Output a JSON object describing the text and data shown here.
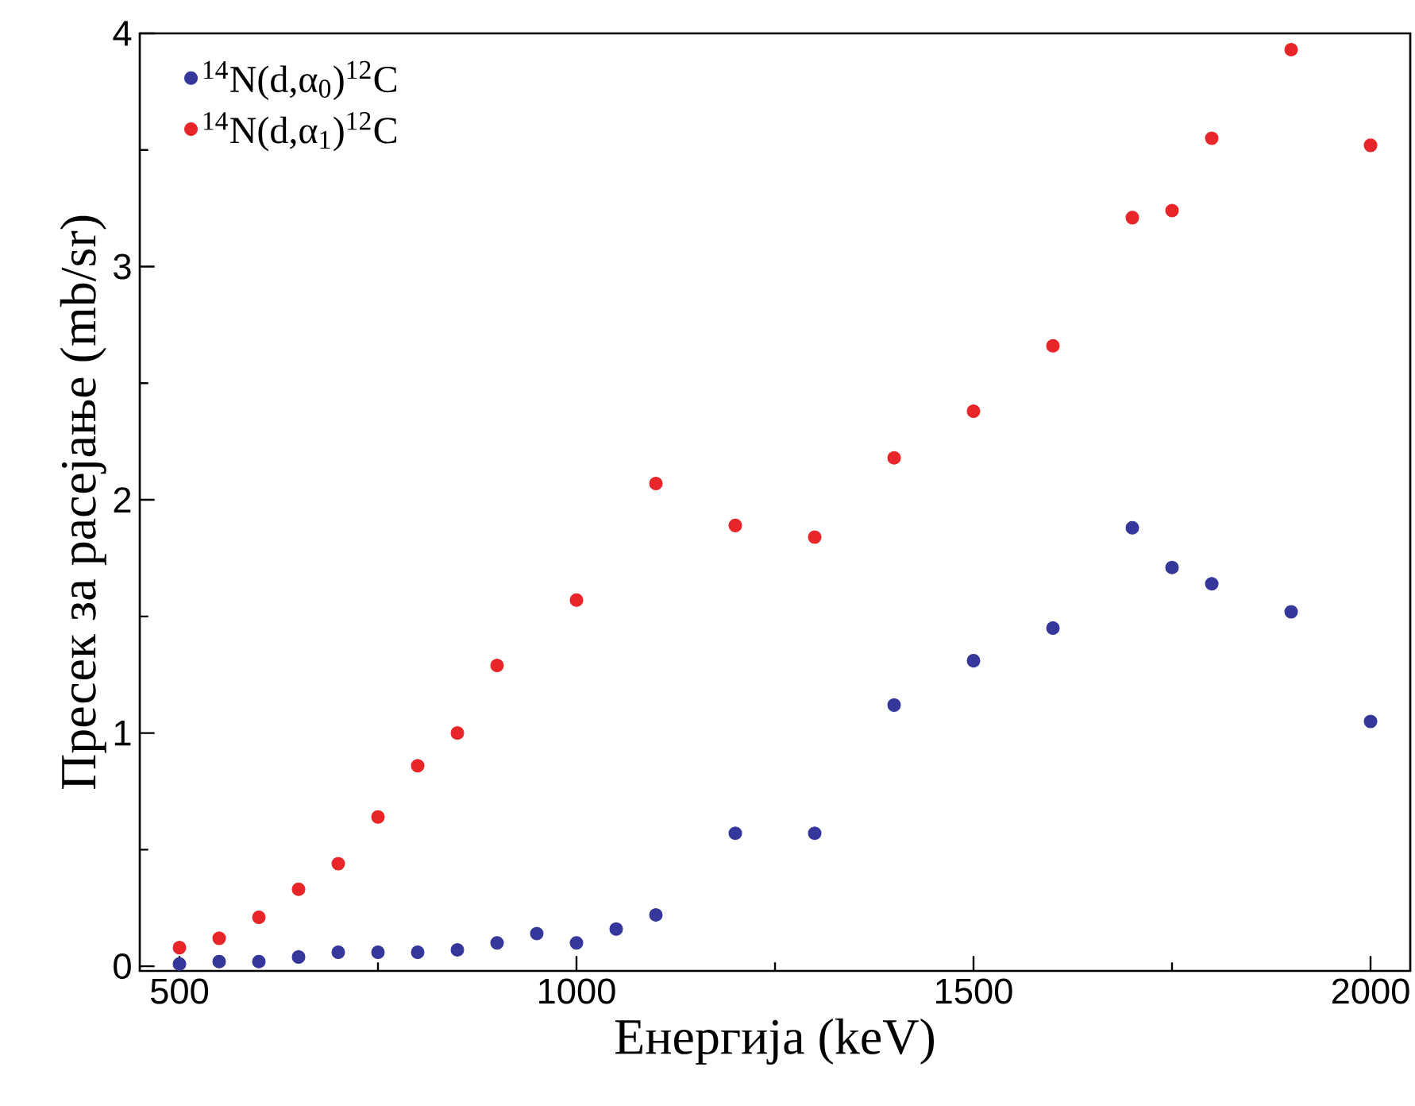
{
  "chart_data": {
    "type": "scatter",
    "xlabel": "Енергија (keV)",
    "ylabel": "Пресек за расејање (mb/sr)",
    "x": [
      500,
      550,
      600,
      650,
      700,
      750,
      800,
      850,
      900,
      950,
      1000,
      1050,
      1100,
      1200,
      1300,
      1400,
      1500,
      1600,
      1700,
      1750,
      1800,
      1900,
      2000
    ],
    "series": [
      {
        "name": "$^{14}$N(d,α$_{0}$)$^{12}$C",
        "color": "#35379a",
        "values": [
          0.01,
          0.02,
          0.02,
          0.04,
          0.06,
          0.06,
          0.06,
          0.07,
          0.1,
          0.14,
          0.1,
          0.16,
          0.22,
          0.57,
          0.57,
          1.12,
          1.31,
          1.45,
          1.88,
          1.71,
          1.64,
          1.52,
          1.05
        ]
      },
      {
        "name": "$^{14}$N(d,α$_{1}$)$^{12}$C",
        "color": "#e8262a",
        "x": [
          500,
          550,
          600,
          650,
          700,
          750,
          800,
          850,
          900,
          1000,
          1100,
          1200,
          1300,
          1400,
          1500,
          1600,
          1700,
          1750,
          1800,
          1900,
          2000
        ],
        "values": [
          0.08,
          0.12,
          0.21,
          0.33,
          0.44,
          0.64,
          0.86,
          1.0,
          1.29,
          1.57,
          2.07,
          1.89,
          1.84,
          2.18,
          2.38,
          2.66,
          3.21,
          3.24,
          3.55,
          3.93,
          3.52
        ]
      }
    ],
    "xlim": [
      450,
      2050
    ],
    "ylim": [
      -0.02,
      4
    ],
    "xticks": [
      500,
      1000,
      1500,
      2000
    ],
    "yticks": [
      0,
      1,
      2,
      3,
      4
    ],
    "grid": false,
    "legend": "top left",
    "marker": "circle"
  }
}
